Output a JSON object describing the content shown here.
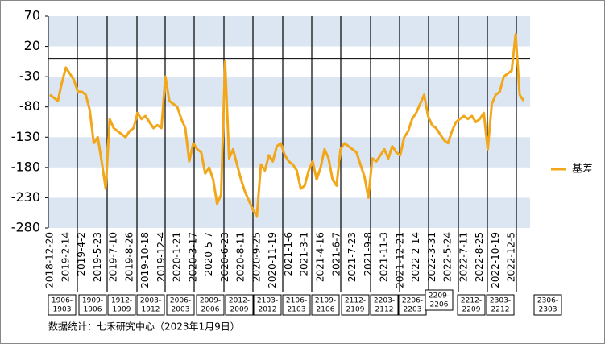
{
  "chart_data": {
    "type": "line",
    "categories": [
      "2018-12-20",
      null,
      null,
      null,
      "2019-2-14",
      null,
      null,
      null,
      "2019-4-2",
      null,
      null,
      null,
      "2019-5-23",
      null,
      null,
      null,
      "2019-7-10",
      null,
      null,
      null,
      "2019-8-26",
      null,
      null,
      null,
      "2019-10-18",
      null,
      null,
      null,
      "2019-12-4",
      null,
      null,
      null,
      "2020-1-21",
      null,
      null,
      null,
      "2020-3-17",
      null,
      null,
      null,
      "2020-5-7",
      null,
      null,
      null,
      "2020-6-23",
      null,
      null,
      null,
      "2020-8-11",
      null,
      null,
      null,
      "2020-9-25",
      null,
      null,
      null,
      "2020-11-19",
      null,
      null,
      null,
      "2021-1-6",
      null,
      null,
      null,
      "2021-3-1",
      null,
      null,
      null,
      "2021-4-16",
      null,
      null,
      null,
      "2021-6-7",
      null,
      null,
      null,
      "2021-7-23",
      null,
      null,
      null,
      "2021-9-8",
      null,
      null,
      null,
      "2021-11-3",
      null,
      null,
      null,
      "2021-12-21",
      null,
      null,
      null,
      "2022-2-14",
      null,
      null,
      null,
      "2022-3-31",
      null,
      null,
      null,
      "2022-5-24",
      null,
      null,
      null,
      "2022-7-11",
      null,
      null,
      null,
      "2022-8-25",
      null,
      null,
      null,
      "2022-10-19",
      null,
      null,
      null,
      "2022-12-5",
      null,
      null,
      null
    ],
    "series": [
      {
        "name": "基差",
        "color": "#f2a71b",
        "values": [
          -60,
          -65,
          -70,
          -40,
          -15,
          -25,
          -35,
          -55,
          -55,
          -60,
          -85,
          -140,
          -130,
          -170,
          -215,
          -100,
          -115,
          -120,
          -125,
          -130,
          -120,
          -115,
          -90,
          -100,
          -95,
          -105,
          -115,
          -110,
          -115,
          -30,
          -70,
          -75,
          -80,
          -100,
          -115,
          -170,
          -140,
          -150,
          -155,
          -190,
          -180,
          -200,
          -240,
          -225,
          -5,
          -165,
          -150,
          -175,
          -200,
          -220,
          -235,
          -250,
          -260,
          -175,
          -185,
          -160,
          -170,
          -145,
          -140,
          -160,
          -170,
          -175,
          -185,
          -215,
          -210,
          -185,
          -170,
          -200,
          -180,
          -150,
          -165,
          -200,
          -210,
          -150,
          -140,
          -145,
          -150,
          -155,
          -175,
          -195,
          -230,
          -165,
          -170,
          -160,
          -150,
          -165,
          -145,
          -155,
          -160,
          -130,
          -120,
          -100,
          -90,
          -75,
          -60,
          -95,
          -110,
          -115,
          -125,
          -135,
          -140,
          -120,
          -105,
          -100,
          -95,
          -100,
          -95,
          -105,
          -100,
          -90,
          -150,
          -75,
          -60,
          -55,
          -30,
          -25,
          -20,
          40,
          -60,
          -70
        ]
      }
    ],
    "ylim": [
      -280,
      70
    ],
    "yticks": [
      70,
      20,
      -30,
      -80,
      -130,
      -180,
      -230,
      -280
    ],
    "contracts": [
      [
        "1906-",
        "1903"
      ],
      [
        "1909-",
        "1906"
      ],
      [
        "1912-",
        "1909"
      ],
      [
        "2003-",
        "1912"
      ],
      [
        "2006-",
        "2003"
      ],
      [
        "2009-",
        "2006"
      ],
      [
        "2012-",
        "2009"
      ],
      [
        "2103-",
        "2012"
      ],
      [
        "2106-",
        "2103"
      ],
      [
        "2109-",
        "2106"
      ],
      [
        "2112-",
        "2109"
      ],
      [
        "2203-",
        "2112"
      ],
      [
        "2206-",
        "2203"
      ],
      [
        "2209-",
        "2206"
      ],
      [
        "2212-",
        "2209"
      ],
      [
        "2303-",
        "2212"
      ],
      [
        "2306-",
        "2303"
      ]
    ],
    "source": "数据统计：七禾研究中心（2023年1月9日）"
  }
}
